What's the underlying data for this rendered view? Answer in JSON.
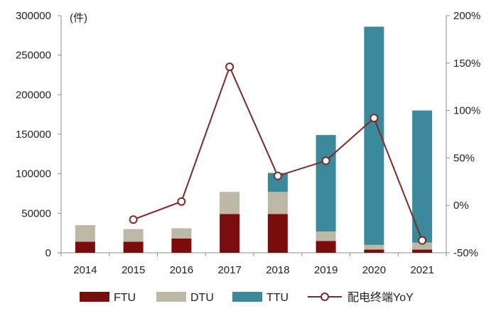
{
  "chart_data": {
    "type": "bar",
    "unit_label": "(件)",
    "categories": [
      "2014",
      "2015",
      "2016",
      "2017",
      "2018",
      "2019",
      "2020",
      "2021"
    ],
    "series": [
      {
        "name": "FTU",
        "kind": "stacked-bar",
        "color": "#7a0c0c",
        "values": [
          14000,
          14000,
          18000,
          49000,
          49000,
          15000,
          4000,
          4000
        ]
      },
      {
        "name": "DTU",
        "kind": "stacked-bar",
        "color": "#bdb8a6",
        "values": [
          21000,
          16000,
          13000,
          28000,
          28000,
          12000,
          6000,
          9000
        ]
      },
      {
        "name": "TTU",
        "kind": "stacked-bar",
        "color": "#3b8a9c",
        "values": [
          0,
          0,
          0,
          0,
          24000,
          122000,
          276000,
          167000
        ]
      },
      {
        "name": "配电终端YoY",
        "kind": "line",
        "axis": "right",
        "color": "#7a2a2a",
        "values": [
          null,
          -15,
          4,
          146,
          31,
          47,
          92,
          -37
        ]
      }
    ],
    "y_left": {
      "min": 0,
      "max": 300000,
      "ticks": [
        "0",
        "50000",
        "100000",
        "150000",
        "200000",
        "250000",
        "300000"
      ]
    },
    "y_right": {
      "min": -50,
      "max": 200,
      "ticks": [
        "-50%",
        "0%",
        "50%",
        "100%",
        "150%",
        "200%"
      ]
    },
    "grid": false,
    "legend_position": "bottom"
  }
}
